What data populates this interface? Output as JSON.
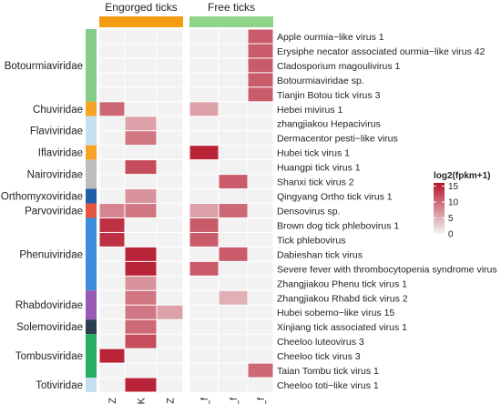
{
  "chart_data": {
    "type": "heatmap",
    "group_headers": [
      {
        "label": "Engorged ticks",
        "color": "#F39C12"
      },
      {
        "label": "Free ticks",
        "color": "#8FD48A"
      }
    ],
    "columns": [
      "CZ",
      "ZJK",
      "SJZ",
      "CZ_f",
      "ZJK_f",
      "SJZ_f"
    ],
    "column_groups": [
      0,
      0,
      0,
      1,
      1,
      1
    ],
    "rows": [
      "Apple ourmia−like virus 1",
      "Erysiphe necator associated ourmia−like virus 42",
      "Cladosporium magoulivirus 1",
      "Botourmiaviridae sp.",
      "Tianjin Botou tick virus 3",
      "Hebei mivirus 1",
      "zhangjiakou Hepacivirus",
      "Dermacentor pesti−like virus",
      "Hubei tick virus 1",
      "Huangpi tick virus 1",
      "Shanxi tick virus 2",
      "Qingyang Ortho tick virus 1",
      "Densovirus sp.",
      "Brown dog tick phlebovirus 1",
      "Tick phlebovirus",
      "Dabieshan tick virus",
      "Severe fever with thrombocytopenia syndrome virus",
      "Zhangjiakou Phenu tick virus 1",
      "Zhangjiakou Rhabd tick virus 2",
      "Hubei sobemo−like virus 15",
      "Xinjiang tick associated virus 1",
      "Cheeloo luteovirus 3",
      "Cheeloo tick virus 3",
      "Taian Tombu tick virus 1",
      "Cheeloo toti−like virus 1"
    ],
    "values": [
      [
        0,
        0,
        0,
        0,
        0,
        11
      ],
      [
        0,
        0,
        0,
        0,
        0,
        11
      ],
      [
        0,
        0,
        0,
        0,
        0,
        11
      ],
      [
        0,
        0,
        0,
        0,
        0,
        11
      ],
      [
        0,
        0,
        0,
        0,
        0,
        11
      ],
      [
        10,
        0,
        0,
        6,
        0,
        0
      ],
      [
        0,
        6,
        0,
        0,
        0,
        0
      ],
      [
        0,
        9,
        0,
        0,
        0,
        0
      ],
      [
        0,
        0,
        0,
        15,
        0,
        0
      ],
      [
        0,
        12,
        0,
        0,
        0,
        0
      ],
      [
        0,
        0,
        0,
        0,
        11,
        0
      ],
      [
        0,
        7,
        0,
        0,
        0,
        0
      ],
      [
        8,
        9,
        0,
        6,
        10,
        0
      ],
      [
        14,
        0,
        0,
        11,
        0,
        0
      ],
      [
        14,
        0,
        0,
        11,
        0,
        0
      ],
      [
        0,
        15,
        0,
        0,
        11,
        0
      ],
      [
        0,
        15,
        0,
        11,
        0,
        0
      ],
      [
        0,
        7,
        0,
        0,
        0,
        0
      ],
      [
        0,
        9,
        0,
        0,
        5,
        0
      ],
      [
        0,
        9,
        6,
        0,
        0,
        0
      ],
      [
        0,
        10,
        0,
        0,
        0,
        0
      ],
      [
        0,
        12,
        0,
        0,
        0,
        0
      ],
      [
        15,
        0,
        0,
        0,
        0,
        0
      ],
      [
        0,
        0,
        0,
        0,
        0,
        10
      ],
      [
        0,
        15,
        0,
        0,
        0,
        0
      ]
    ],
    "families": [
      {
        "name": "Botourmiaviridae",
        "start": 0,
        "end": 4,
        "color": "#86CC86"
      },
      {
        "name": "Chuviridae",
        "start": 5,
        "end": 5,
        "color": "#F7A325"
      },
      {
        "name": "Flaviviridae",
        "start": 6,
        "end": 7,
        "color": "#C8E1F2"
      },
      {
        "name": "Iflaviridae",
        "start": 8,
        "end": 8,
        "color": "#F7A325"
      },
      {
        "name": "Nairoviridae",
        "start": 9,
        "end": 10,
        "color": "#BDBDBD"
      },
      {
        "name": "Orthomyxoviridae",
        "start": 11,
        "end": 11,
        "color": "#1F5FA8"
      },
      {
        "name": "Parvoviridae",
        "start": 12,
        "end": 12,
        "color": "#E8553E"
      },
      {
        "name": "Phenuiviridae",
        "start": 13,
        "end": 17,
        "color": "#3B8EDB"
      },
      {
        "name": "Rhabdoviridae",
        "start": 18,
        "end": 19,
        "color": "#9B59B6"
      },
      {
        "name": "Solemoviridae",
        "start": 20,
        "end": 20,
        "color": "#2C3E50"
      },
      {
        "name": "Tombusviridae",
        "start": 21,
        "end": 23,
        "color": "#27AE60"
      },
      {
        "name": "Totiviridae",
        "start": 24,
        "end": 24,
        "color": "#C8E1F2"
      }
    ],
    "legend": {
      "title": "log2(fpkm+1)",
      "ticks": [
        15,
        10,
        5,
        0
      ],
      "max": 16,
      "color_low": "#F5F5F5",
      "color_high": "#B5152B",
      "placement": "right"
    },
    "empty_color": "#F2F2F2"
  }
}
